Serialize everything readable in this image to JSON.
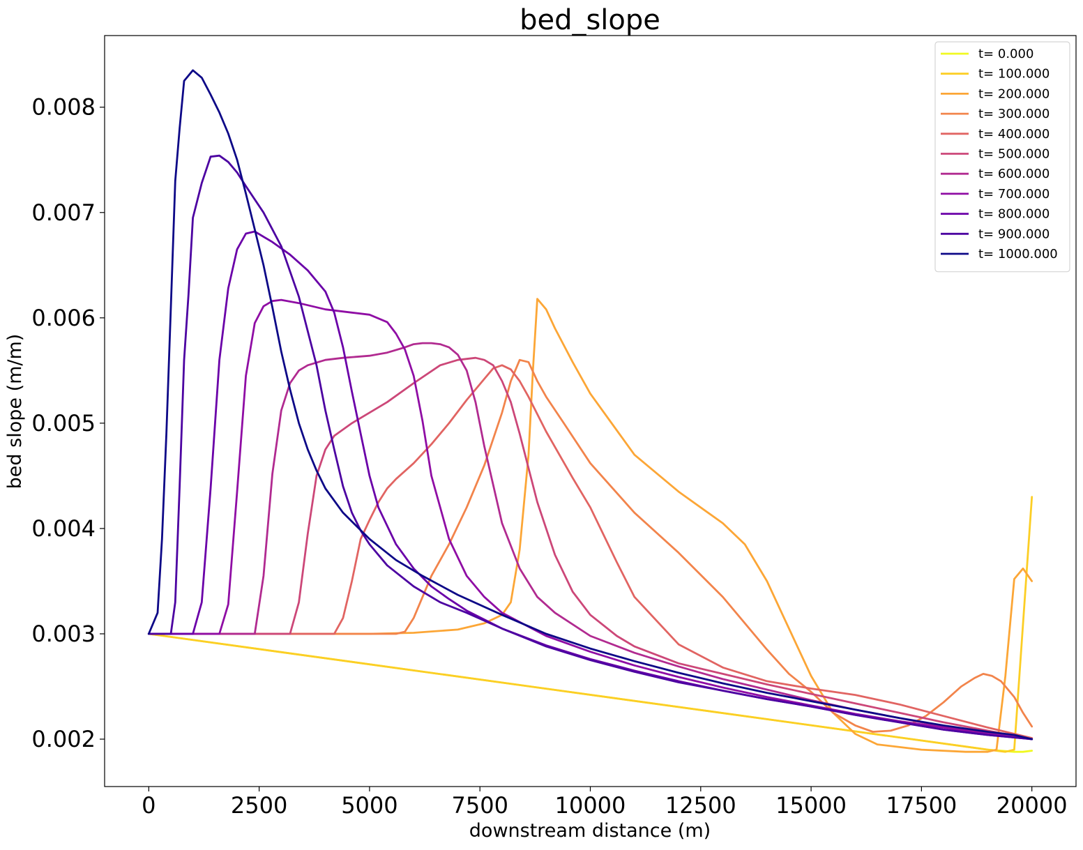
{
  "chart_data": {
    "type": "line",
    "title": "bed_slope",
    "xlabel": "downstream distance (m)",
    "ylabel": "bed slope (m/m)",
    "xlim": [
      -1000,
      21000
    ],
    "ylim": [
      0.00155,
      0.00868
    ],
    "xticks": [
      0,
      2500,
      5000,
      7500,
      10000,
      12500,
      15000,
      17500,
      20000
    ],
    "xtick_labels": [
      "0",
      "2500",
      "5000",
      "7500",
      "10000",
      "12500",
      "15000",
      "17500",
      "20000"
    ],
    "yticks": [
      0.002,
      0.003,
      0.004,
      0.005,
      0.006,
      0.007,
      0.008
    ],
    "ytick_labels": [
      "0.002",
      "0.003",
      "0.004",
      "0.005",
      "0.006",
      "0.007",
      "0.008"
    ],
    "grid": false,
    "legend_position": "top-right",
    "series": [
      {
        "name": "t= 0.000",
        "color": "#f0f921",
        "x": [
          0,
          19000,
          19600,
          19800,
          20000
        ],
        "y": [
          0.003,
          0.0019,
          0.00188,
          0.00188,
          0.00189
        ]
      },
      {
        "name": "t= 100.000",
        "color": "#fcce25",
        "x": [
          0,
          19000,
          19400,
          19600,
          20000
        ],
        "y": [
          0.003,
          0.0019,
          0.00188,
          0.0019,
          0.0043
        ]
      },
      {
        "name": "t= 200.000",
        "color": "#fca636",
        "x": [
          0,
          5000,
          6000,
          7000,
          7600,
          8000,
          8200,
          8400,
          8600,
          8700,
          8800,
          9000,
          9200,
          9600,
          10000,
          11000,
          12000,
          13000,
          13500,
          14000,
          14500,
          15000,
          15500,
          16000,
          16500,
          17500,
          18500,
          19000,
          19200,
          19400,
          19600,
          19800,
          20000
        ],
        "y": [
          0.003,
          0.003,
          0.00301,
          0.00304,
          0.0031,
          0.00318,
          0.0033,
          0.0038,
          0.0047,
          0.0055,
          0.00618,
          0.00608,
          0.0059,
          0.00558,
          0.00528,
          0.0047,
          0.00435,
          0.00405,
          0.00385,
          0.0035,
          0.00305,
          0.0026,
          0.00225,
          0.00205,
          0.00195,
          0.0019,
          0.00188,
          0.00188,
          0.0019,
          0.0026,
          0.00352,
          0.00362,
          0.0035
        ]
      },
      {
        "name": "t= 300.000",
        "color": "#f2844b",
        "x": [
          0,
          5600,
          5800,
          6000,
          6400,
          6800,
          7200,
          7600,
          8000,
          8200,
          8400,
          8600,
          8800,
          9000,
          9400,
          10000,
          11000,
          12000,
          13000,
          14000,
          14500,
          15000,
          15500,
          16000,
          16400,
          16800,
          17200,
          17600,
          18000,
          18400,
          18700,
          18900,
          19100,
          19300,
          19600,
          19800,
          20000
        ],
        "y": [
          0.003,
          0.003,
          0.00302,
          0.00315,
          0.00355,
          0.00385,
          0.0042,
          0.0046,
          0.0051,
          0.0054,
          0.0056,
          0.00558,
          0.0054,
          0.00525,
          0.005,
          0.00462,
          0.00415,
          0.00377,
          0.00335,
          0.00285,
          0.00262,
          0.00245,
          0.00225,
          0.00213,
          0.00207,
          0.00208,
          0.00213,
          0.00222,
          0.00235,
          0.0025,
          0.00258,
          0.00262,
          0.0026,
          0.00255,
          0.0024,
          0.00225,
          0.00212
        ]
      },
      {
        "name": "t= 400.000",
        "color": "#e16462",
        "x": [
          0,
          4200,
          4400,
          4600,
          4800,
          5000,
          5200,
          5400,
          5600,
          6000,
          6400,
          6800,
          7200,
          7600,
          7800,
          8000,
          8200,
          8400,
          8600,
          9000,
          9600,
          10000,
          10600,
          11000,
          12000,
          13000,
          14000,
          15000,
          16000,
          17000,
          18000,
          19000,
          20000
        ],
        "y": [
          0.003,
          0.003,
          0.00315,
          0.0035,
          0.0039,
          0.00408,
          0.00425,
          0.00438,
          0.00447,
          0.00462,
          0.0048,
          0.005,
          0.00522,
          0.00542,
          0.00552,
          0.00555,
          0.00551,
          0.0054,
          0.00525,
          0.00492,
          0.00448,
          0.0042,
          0.00368,
          0.00335,
          0.0029,
          0.00268,
          0.00255,
          0.00248,
          0.00242,
          0.00233,
          0.00222,
          0.00211,
          0.00201
        ]
      },
      {
        "name": "t= 500.000",
        "color": "#cc4778",
        "x": [
          0,
          3200,
          3400,
          3600,
          3800,
          4000,
          4200,
          4600,
          5000,
          5400,
          6000,
          6600,
          7000,
          7400,
          7600,
          7800,
          8000,
          8200,
          8400,
          8800,
          9200,
          9600,
          10000,
          10600,
          11000,
          12000,
          13000,
          14000,
          15000,
          16000,
          17000,
          18000,
          19000,
          20000
        ],
        "y": [
          0.003,
          0.003,
          0.0033,
          0.00395,
          0.0045,
          0.00475,
          0.00488,
          0.005,
          0.0051,
          0.0052,
          0.00538,
          0.00555,
          0.0056,
          0.00562,
          0.0056,
          0.00555,
          0.0054,
          0.0052,
          0.0049,
          0.00425,
          0.00375,
          0.0034,
          0.00318,
          0.00298,
          0.00288,
          0.00272,
          0.00262,
          0.00252,
          0.00243,
          0.00234,
          0.00225,
          0.00216,
          0.00208,
          0.002
        ]
      },
      {
        "name": "t= 600.000",
        "color": "#b12a90",
        "x": [
          0,
          2400,
          2600,
          2800,
          3000,
          3200,
          3400,
          3600,
          4000,
          4400,
          5000,
          5400,
          5800,
          6000,
          6200,
          6400,
          6600,
          6800,
          7000,
          7200,
          7400,
          7600,
          8000,
          8400,
          8800,
          9200,
          10000,
          11000,
          12000,
          13000,
          14000,
          15000,
          16000,
          17000,
          18000,
          19000,
          20000
        ],
        "y": [
          0.003,
          0.003,
          0.00355,
          0.00452,
          0.00512,
          0.00538,
          0.0055,
          0.00555,
          0.0056,
          0.00562,
          0.00564,
          0.00567,
          0.00572,
          0.00575,
          0.00576,
          0.00576,
          0.00575,
          0.00572,
          0.00565,
          0.0055,
          0.0052,
          0.00478,
          0.00405,
          0.00362,
          0.00335,
          0.0032,
          0.00298,
          0.00282,
          0.00269,
          0.00257,
          0.00247,
          0.00237,
          0.00228,
          0.0022,
          0.00212,
          0.00206,
          0.002
        ]
      },
      {
        "name": "t= 700.000",
        "color": "#8f0da4",
        "x": [
          0,
          1600,
          1800,
          2000,
          2200,
          2400,
          2600,
          2800,
          3000,
          3400,
          4000,
          4600,
          5000,
          5400,
          5600,
          5800,
          6000,
          6200,
          6400,
          6800,
          7200,
          7600,
          8000,
          9000,
          10000,
          11000,
          12000,
          13000,
          14000,
          15000,
          16000,
          17000,
          18000,
          19000,
          20000
        ],
        "y": [
          0.003,
          0.003,
          0.00328,
          0.00435,
          0.00545,
          0.00595,
          0.00611,
          0.00616,
          0.00617,
          0.00614,
          0.00608,
          0.00605,
          0.00603,
          0.00596,
          0.00585,
          0.0057,
          0.00545,
          0.00502,
          0.0045,
          0.0039,
          0.00355,
          0.00335,
          0.0032,
          0.00298,
          0.00283,
          0.0027,
          0.00259,
          0.00249,
          0.0024,
          0.00232,
          0.00224,
          0.00217,
          0.00211,
          0.00205,
          0.002
        ]
      },
      {
        "name": "t= 800.000",
        "color": "#6a00a8",
        "x": [
          0,
          1000,
          1200,
          1400,
          1600,
          1800,
          2000,
          2200,
          2400,
          2800,
          3200,
          3600,
          4000,
          4200,
          4400,
          4600,
          4800,
          5000,
          5200,
          5600,
          6000,
          6400,
          6800,
          7200,
          8000,
          9000,
          10000,
          11000,
          12000,
          13000,
          14000,
          15000,
          16000,
          17000,
          18000,
          19000,
          20000
        ],
        "y": [
          0.003,
          0.003,
          0.0033,
          0.00438,
          0.0056,
          0.00628,
          0.00665,
          0.0068,
          0.00682,
          0.00672,
          0.0066,
          0.00645,
          0.00625,
          0.00605,
          0.00572,
          0.0053,
          0.0049,
          0.0045,
          0.0042,
          0.00385,
          0.00362,
          0.00345,
          0.00333,
          0.00322,
          0.00305,
          0.00289,
          0.00276,
          0.00265,
          0.00255,
          0.00246,
          0.00238,
          0.00231,
          0.00223,
          0.00216,
          0.00209,
          0.00204,
          0.002
        ]
      },
      {
        "name": "t= 900.000",
        "color": "#4c02a1",
        "x": [
          0,
          500,
          600,
          700,
          800,
          900,
          1000,
          1200,
          1400,
          1600,
          1800,
          2000,
          2200,
          2600,
          3000,
          3400,
          3800,
          4000,
          4200,
          4400,
          4600,
          4800,
          5000,
          5400,
          6000,
          6600,
          7200,
          8000,
          9000,
          10000,
          11000,
          12000,
          13000,
          14000,
          15000,
          16000,
          17000,
          18000,
          19000,
          20000
        ],
        "y": [
          0.003,
          0.003,
          0.0033,
          0.0044,
          0.0056,
          0.00622,
          0.00695,
          0.00728,
          0.00753,
          0.00754,
          0.00748,
          0.00738,
          0.00725,
          0.007,
          0.00668,
          0.0062,
          0.00555,
          0.00512,
          0.00475,
          0.0044,
          0.00415,
          0.00398,
          0.00385,
          0.00365,
          0.00345,
          0.0033,
          0.0032,
          0.00305,
          0.00288,
          0.00275,
          0.00264,
          0.00254,
          0.00246,
          0.00238,
          0.00231,
          0.00223,
          0.00216,
          0.00209,
          0.00204,
          0.002
        ]
      },
      {
        "name": "t= 1000.000",
        "color": "#0d0887",
        "x": [
          0,
          200,
          300,
          400,
          500,
          600,
          700,
          800,
          1000,
          1200,
          1400,
          1600,
          1800,
          2000,
          2200,
          2400,
          2600,
          2800,
          3000,
          3200,
          3400,
          3600,
          3800,
          4000,
          4400,
          5000,
          5600,
          6200,
          7000,
          8000,
          9000,
          10000,
          11000,
          12000,
          13000,
          14000,
          15000,
          16000,
          17000,
          18000,
          19000,
          19600,
          20000
        ],
        "y": [
          0.003,
          0.0032,
          0.0039,
          0.0049,
          0.0061,
          0.0073,
          0.0078,
          0.00825,
          0.00835,
          0.00828,
          0.00812,
          0.00795,
          0.00775,
          0.0075,
          0.00718,
          0.00684,
          0.0065,
          0.0061,
          0.00568,
          0.00532,
          0.005,
          0.00475,
          0.00455,
          0.00438,
          0.00415,
          0.0039,
          0.0037,
          0.00355,
          0.00337,
          0.00318,
          0.003,
          0.00286,
          0.00274,
          0.00263,
          0.00253,
          0.00244,
          0.00236,
          0.00228,
          0.0022,
          0.00213,
          0.00207,
          0.00204,
          0.002
        ]
      }
    ]
  }
}
